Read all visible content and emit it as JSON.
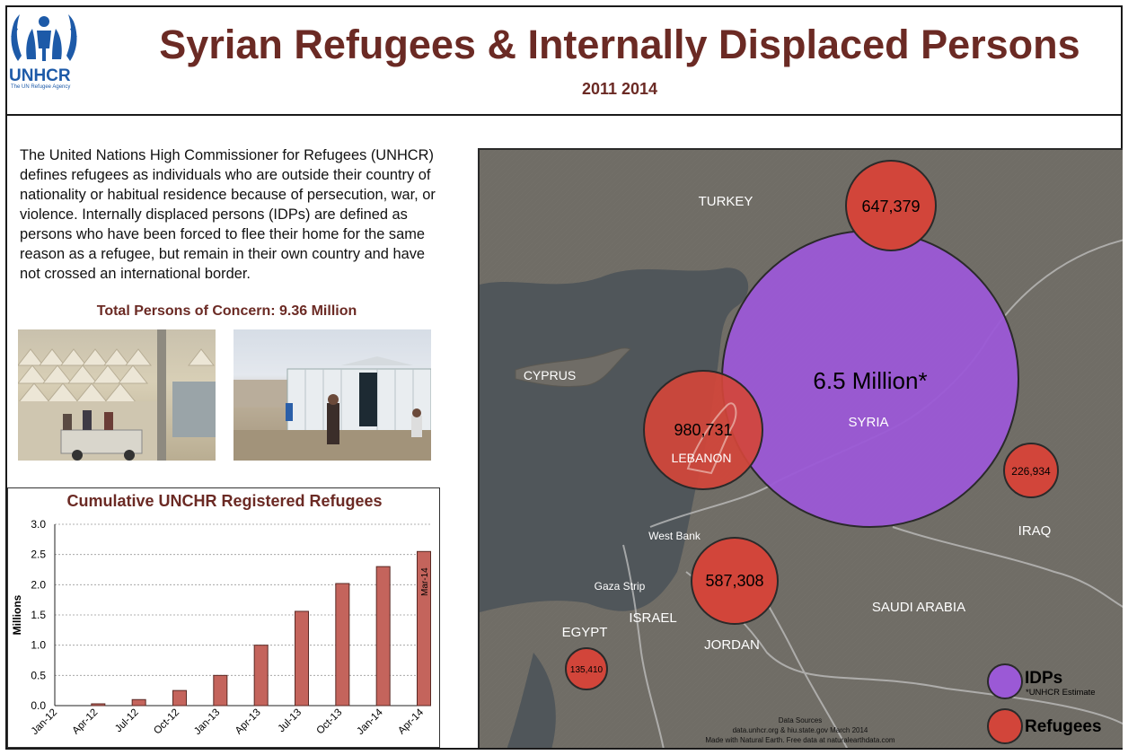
{
  "header": {
    "logo_name": "UNHCR",
    "logo_subtitle": "The UN Refugee Agency",
    "title": "Syrian Refugees & Internally Displaced Persons",
    "subtitle": "2011  2014"
  },
  "intro": {
    "text": "The United Nations High Commissioner for Refugees (UNHCR) defines refugees as individuals who are outside their country of nationality or habitual residence because of persecution, war, or violence. Internally displaced persons (IDPs) are defined as persons who have been forced to flee their home for the same reason as a refugee, but remain in their own country and have not crossed an international border.",
    "total": "Total Persons of Concern: 9.36 Million"
  },
  "chart_data": {
    "type": "bar",
    "title": "Cumulative UNCHR Registered Refugees",
    "ylabel": "Millions",
    "ylim": [
      0,
      3.0
    ],
    "yticks": [
      "0.0",
      "0.5",
      "1.0",
      "1.5",
      "2.0",
      "2.5",
      "3.0"
    ],
    "categories": [
      "Jan-12",
      "Apr-12",
      "Jul-12",
      "Oct-12",
      "Jan-13",
      "Apr-13",
      "Jul-13",
      "Oct-13",
      "Jan-14",
      "Apr-14"
    ],
    "values": [
      0.0,
      0.03,
      0.1,
      0.25,
      0.5,
      1.0,
      1.56,
      2.02,
      2.3,
      2.55
    ],
    "bar_color": "#c4645c",
    "annotation": "Mar-14",
    "grid": true
  },
  "map": {
    "colors": {
      "idp": "#9b59d6",
      "refugee": "#d2453a",
      "sea": "#4f5559",
      "land": "#6e6b65"
    },
    "idp": {
      "value": "6.5 Million*",
      "country": "SYRIA"
    },
    "refugees": [
      {
        "country": "TURKEY",
        "value": "647,379"
      },
      {
        "country": "LEBANON",
        "value": "980,731"
      },
      {
        "country": "JORDAN",
        "value": "587,308"
      },
      {
        "country": "IRAQ",
        "value": "226,934"
      },
      {
        "country": "EGYPT",
        "value": "135,410"
      }
    ],
    "labels": {
      "cyprus": "CYPRUS",
      "west_bank": "West Bank",
      "gaza": "Gaza Strip",
      "israel": "ISRAEL",
      "saudi": "SAUDI ARABIA"
    },
    "legend": {
      "idp": "IDPs",
      "idp_note": "*UNHCR Estimate",
      "refugees": "Refugees"
    },
    "sources": {
      "heading": "Data Sources",
      "line1": "data.unhcr.org & hiu.state.gov March 2014",
      "line2": "Made with Natural Earth.  Free data at naturalearthdata.com"
    }
  }
}
